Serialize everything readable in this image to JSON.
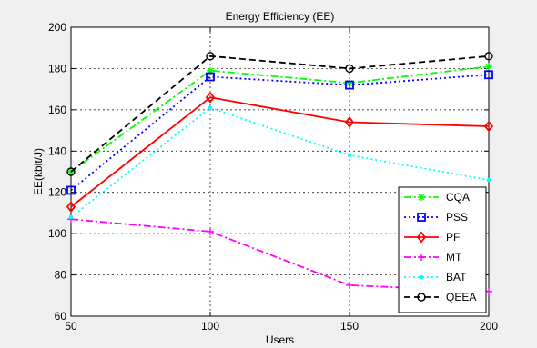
{
  "chart_data": {
    "type": "line",
    "title": "Energy Efficiency (EE)",
    "xlabel": "Users",
    "ylabel": "EE(kbit/J)",
    "x": [
      50,
      100,
      150,
      200
    ],
    "xlim": [
      50,
      200
    ],
    "ylim": [
      60,
      200
    ],
    "xticks": [
      50,
      100,
      150,
      200
    ],
    "yticks": [
      60,
      80,
      100,
      120,
      140,
      160,
      180,
      200
    ],
    "grid": true,
    "legend_position": "bottom-right",
    "series": [
      {
        "name": "CQA",
        "values": [
          130,
          179,
          173,
          181
        ],
        "color": "#00ff00",
        "dash": "8,3,2,3",
        "marker": "star"
      },
      {
        "name": "PSS",
        "values": [
          121,
          176,
          172,
          177
        ],
        "color": "#0000ff",
        "dash": "2,3",
        "marker": "square"
      },
      {
        "name": "PF",
        "values": [
          113,
          166,
          154,
          152
        ],
        "color": "#ff0000",
        "dash": "",
        "marker": "diamond"
      },
      {
        "name": "MT",
        "values": [
          107,
          101,
          75,
          72
        ],
        "color": "#ff00ff",
        "dash": "8,3,2,3",
        "marker": "plus"
      },
      {
        "name": "BAT",
        "values": [
          108,
          161,
          138,
          126
        ],
        "color": "#00ffff",
        "dash": "2,3",
        "marker": "dot"
      },
      {
        "name": "QEEA",
        "values": [
          130,
          186,
          180,
          186
        ],
        "color": "#000000",
        "dash": "7,4",
        "marker": "circle"
      }
    ]
  }
}
